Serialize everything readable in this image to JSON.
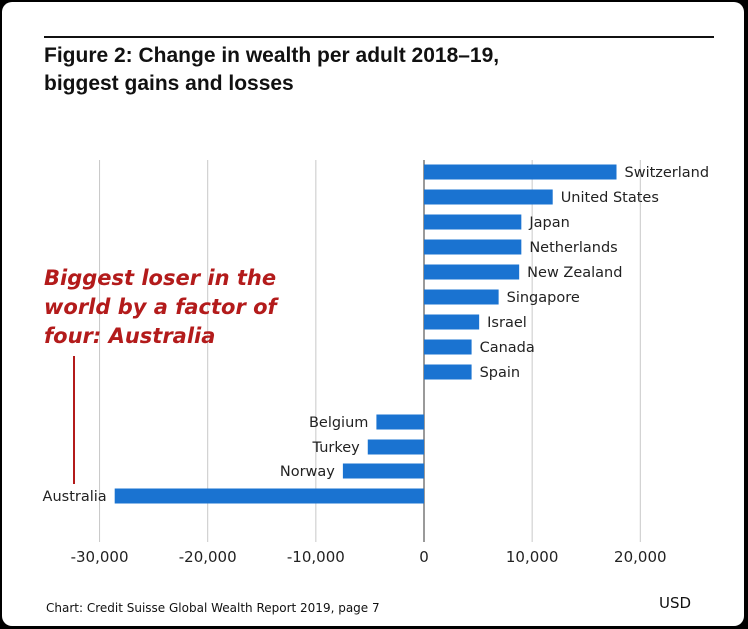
{
  "title_lines": [
    "Figure 2: Change in wealth per adult 2018–19,",
    "biggest gains and losses"
  ],
  "annotation_lines": [
    "Biggest loser in the",
    "world by a factor of",
    "four: Australia"
  ],
  "source": "Chart: Credit Suisse Global Wealth Report 2019, page 7",
  "unit": "USD",
  "colors": {
    "bar": "#1a73d1",
    "grid": "#c8c8c8",
    "zero_line": "#9a9a9a",
    "annotation": "#b31b1b"
  },
  "chart_data": {
    "type": "bar",
    "orientation": "horizontal",
    "title": "Figure 2: Change in wealth per adult 2018–19, biggest gains and losses",
    "xlabel": "USD",
    "xlim": [
      -33000,
      23000
    ],
    "xticks": [
      -30000,
      -20000,
      -10000,
      0,
      10000,
      20000
    ],
    "xtick_labels": [
      "-30,000",
      "-20,000",
      "-10,000",
      "0",
      "10,000",
      "20,000"
    ],
    "grid": "vertical",
    "categories": [
      "Switzerland",
      "United States",
      "Japan",
      "Netherlands",
      "New Zealand",
      "Singapore",
      "Israel",
      "Canada",
      "Spain",
      "Belgium",
      "Turkey",
      "Norway",
      "Australia"
    ],
    "values": [
      17800,
      11900,
      9000,
      9000,
      8800,
      6900,
      5100,
      4400,
      4400,
      -4400,
      -5200,
      -7500,
      -28600
    ]
  }
}
